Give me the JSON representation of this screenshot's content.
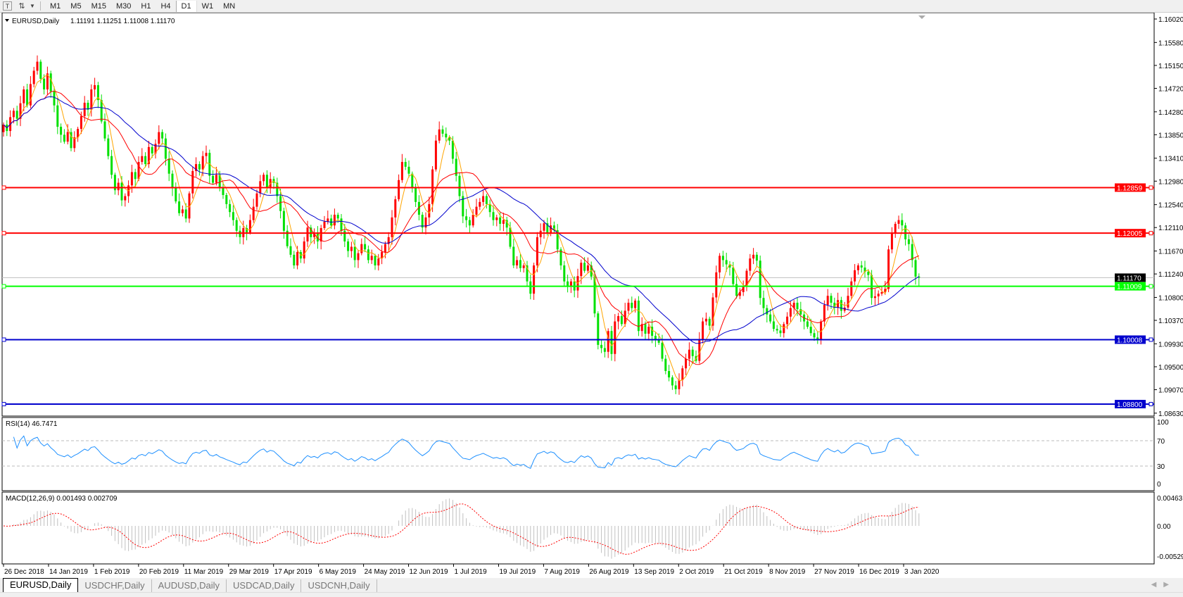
{
  "toolbar": {
    "icons": [
      "text-tool-icon",
      "line-tool-icon",
      "dropdown-arrow-icon"
    ],
    "timeframes": [
      "M1",
      "M5",
      "M15",
      "M30",
      "H1",
      "H4",
      "D1",
      "W1",
      "MN"
    ],
    "active_timeframe": "D1"
  },
  "chart_header": {
    "symbol": "EURUSD,Daily",
    "ohlc": "1.11191 1.11251 1.11008 1.11170"
  },
  "chart_data": [
    {
      "type": "candlestick",
      "title": "EURUSD,Daily",
      "last_bar": {
        "open": 1.11191,
        "high": 1.11251,
        "low": 1.11008,
        "close": 1.1117
      },
      "bullish_color": "#ff0000",
      "bearish_color": "#00e000",
      "closes": [
        1.1404,
        1.1392,
        1.1418,
        1.143,
        1.1415,
        1.1444,
        1.147,
        1.144,
        1.148,
        1.1505,
        1.1522,
        1.149,
        1.147,
        1.15,
        1.1466,
        1.144,
        1.14,
        1.1385,
        1.1372,
        1.139,
        1.136,
        1.138,
        1.1396,
        1.142,
        1.1445,
        1.1432,
        1.147,
        1.1478,
        1.145,
        1.141,
        1.1378,
        1.1345,
        1.131,
        1.1281,
        1.1295,
        1.1262,
        1.127,
        1.129,
        1.1315,
        1.1302,
        1.1334,
        1.1345,
        1.133,
        1.1362,
        1.135,
        1.1368,
        1.139,
        1.1378,
        1.134,
        1.1312,
        1.1285,
        1.126,
        1.1238,
        1.1245,
        1.1228,
        1.1275,
        1.1317,
        1.133,
        1.132,
        1.1345,
        1.1351,
        1.1308,
        1.1295,
        1.131,
        1.1285,
        1.1272,
        1.1255,
        1.124,
        1.1225,
        1.1205,
        1.1193,
        1.121,
        1.1202,
        1.1225,
        1.125,
        1.1275,
        1.1298,
        1.131,
        1.1285,
        1.1302,
        1.1295,
        1.127,
        1.1242,
        1.1205,
        1.1176,
        1.116,
        1.114,
        1.1165,
        1.1153,
        1.1185,
        1.1211,
        1.1193,
        1.12,
        1.1185,
        1.121,
        1.1222,
        1.1228,
        1.1215,
        1.1235,
        1.1228,
        1.1205,
        1.1185,
        1.1167,
        1.1175,
        1.115,
        1.1163,
        1.118,
        1.117,
        1.115,
        1.1158,
        1.114,
        1.1153,
        1.1165,
        1.118,
        1.1193,
        1.123,
        1.1264,
        1.13,
        1.1334,
        1.1325,
        1.1312,
        1.1285,
        1.1259,
        1.1235,
        1.1211,
        1.123,
        1.1255,
        1.132,
        1.1374,
        1.1395,
        1.1387,
        1.138,
        1.1374,
        1.134,
        1.1308,
        1.127,
        1.1232,
        1.1225,
        1.1215,
        1.1235,
        1.125,
        1.1259,
        1.127,
        1.1255,
        1.124,
        1.1225,
        1.123,
        1.1218,
        1.1225,
        1.1211,
        1.1175,
        1.114,
        1.115,
        1.1135,
        1.114,
        1.111,
        1.1087,
        1.114,
        1.1193,
        1.1205,
        1.1219,
        1.12,
        1.1215,
        1.1206,
        1.117,
        1.114,
        1.111,
        1.11,
        1.111,
        1.1093,
        1.112,
        1.1145,
        1.113,
        1.114,
        1.1119,
        1.105,
        1.0991,
        1.0985,
        1.0978,
        1.1017,
        1.0974,
        1.1035,
        1.1045,
        1.103,
        1.1055,
        1.107,
        1.106,
        1.1074,
        1.1017,
        1.103,
        1.1012,
        1.1025,
        1.1008,
        1.1002,
        1.0995,
        1.0965,
        1.0942,
        1.093,
        1.0915,
        1.0908,
        1.0925,
        1.0947,
        1.0965,
        1.0982,
        1.097,
        1.0961,
        1.1,
        1.1035,
        1.104,
        1.1027,
        1.108,
        1.1127,
        1.1158,
        1.115,
        1.1142,
        1.1136,
        1.1105,
        1.1083,
        1.109,
        1.11,
        1.113,
        1.1153,
        1.116,
        1.1149,
        1.1079,
        1.106,
        1.1048,
        1.1035,
        1.1021,
        1.1018,
        1.1013,
        1.103,
        1.1044,
        1.106,
        1.107,
        1.1058,
        1.1048,
        1.1035,
        1.1025,
        1.1013,
        1.1005,
        1.1,
        1.1035,
        1.1066,
        1.1083,
        1.107,
        1.1061,
        1.1075,
        1.1055,
        1.1061,
        1.1083,
        1.111,
        1.1131,
        1.114,
        1.1136,
        1.1128,
        1.1122,
        1.1079,
        1.1082,
        1.1087,
        1.109,
        1.1096,
        1.117,
        1.12,
        1.1218,
        1.1225,
        1.1215,
        1.1189,
        1.118,
        1.115,
        1.1119,
        1.1117
      ],
      "moving_average_colors": [
        "#ffa500",
        "#ff0000",
        "#0000cd"
      ],
      "y_ticks": [
        "1.16020",
        "1.15580",
        "1.15150",
        "1.14720",
        "1.14280",
        "1.13850",
        "1.13410",
        "1.12980",
        "1.12540",
        "1.12110",
        "1.11670",
        "1.11240",
        "1.10800",
        "1.10370",
        "1.09930",
        "1.09500",
        "1.09070",
        "1.08630"
      ],
      "ylim": [
        1.0863,
        1.1602
      ],
      "x_ticks": [
        "26 Dec 2018",
        "14 Jan 2019",
        "1 Feb 2019",
        "20 Feb 2019",
        "11 Mar 2019",
        "29 Mar 2019",
        "17 Apr 2019",
        "6 May 2019",
        "24 May 2019",
        "12 Jun 2019",
        "1 Jul 2019",
        "19 Jul 2019",
        "7 Aug 2019",
        "26 Aug 2019",
        "13 Sep 2019",
        "2 Oct 2019",
        "21 Oct 2019",
        "8 Nov 2019",
        "27 Nov 2019",
        "16 Dec 2019",
        "3 Jan 2020"
      ],
      "horizontal_lines": [
        {
          "price": 1.12859,
          "label": "1.12859",
          "color": "#ff0000"
        },
        {
          "price": 1.12005,
          "label": "1.12005",
          "color": "#ff0000"
        },
        {
          "price": 1.11009,
          "label": "1.11009",
          "color": "#00ff00"
        },
        {
          "price": 1.10008,
          "label": "1.10008",
          "color": "#0000cd"
        },
        {
          "price": 1.088,
          "label": "1.08800",
          "color": "#0000cd"
        }
      ],
      "current_price": {
        "price": 1.1117,
        "label": "1.11170"
      }
    },
    {
      "type": "line",
      "title": "RSI(14) 46.7471",
      "label": "RSI(14)",
      "value": "46.7471",
      "period": 14,
      "color": "#1e90ff",
      "ylim": [
        0,
        100
      ],
      "y_ticks": [
        "100",
        "70",
        "30",
        "0"
      ],
      "levels": [
        70,
        30
      ]
    },
    {
      "type": "bar",
      "title": "MACD(12,26,9) 0.001493 0.002709",
      "label": "MACD(12,26,9)",
      "values": "0.001493 0.002709",
      "params": [
        12,
        26,
        9
      ],
      "histogram_color": "#c0c0c0",
      "signal_color": "#ff0000",
      "ylim": [
        -0.00529,
        0.00463
      ],
      "y_ticks": [
        "0.00463",
        "0.00",
        "-0.00529"
      ]
    }
  ],
  "tabs": [
    "EURUSD,Daily",
    "USDCHF,Daily",
    "AUDUSD,Daily",
    "USDCAD,Daily",
    "USDCNH,Daily"
  ],
  "active_tab": "EURUSD,Daily"
}
